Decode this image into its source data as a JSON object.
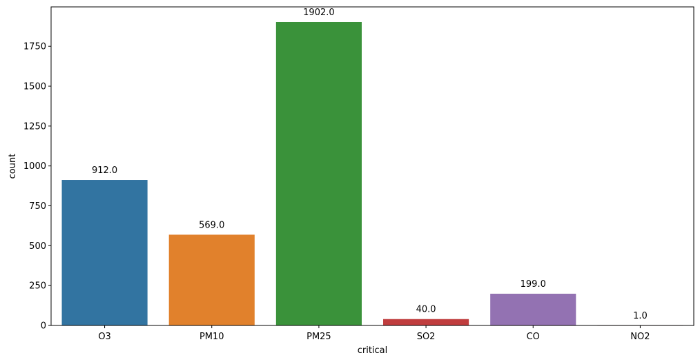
{
  "chart_data": {
    "type": "bar",
    "title": "",
    "xlabel": "critical",
    "ylabel": "count",
    "categories": [
      "O3",
      "PM10",
      "PM25",
      "SO2",
      "CO",
      "NO2"
    ],
    "values": [
      912.0,
      569.0,
      1902.0,
      40.0,
      199.0,
      1.0
    ],
    "value_labels": [
      "912.0",
      "569.0",
      "1902.0",
      "40.0",
      "199.0",
      "1.0"
    ],
    "colors": [
      "#3274a1",
      "#e1812c",
      "#3a923a",
      "#c03d3e",
      "#9372b2",
      "#845b53"
    ],
    "yticks": [
      0,
      250,
      500,
      750,
      1000,
      1250,
      1500,
      1750
    ],
    "ylim": [
      0,
      1997.1
    ],
    "grid": false,
    "legend": "none"
  }
}
